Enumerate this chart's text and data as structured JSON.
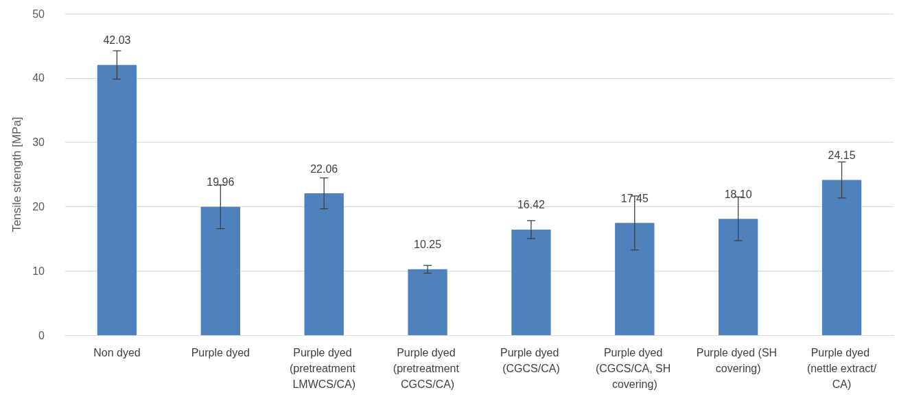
{
  "chart_data": {
    "type": "bar",
    "ylabel": "Tensile strength [MPa]",
    "categories": [
      "Non dyed",
      "Purple dyed",
      "Purple dyed (pretreatment LMWCS/CA)",
      "Purple dyed (pretreatment CGCS/CA)",
      "Purple dyed (CGCS/CA)",
      "Purple dyed (CGCS/CA, SH covering)",
      "Purple dyed (SH covering)",
      "Purple dyed (nettle extract/CA)"
    ],
    "values": [
      42.03,
      19.96,
      22.06,
      10.25,
      16.42,
      17.45,
      18.1,
      24.15
    ],
    "value_labels": [
      "42.03",
      "19.96",
      "22.06",
      "10.25",
      "16.42",
      "17.45",
      "18.10",
      "24.15"
    ],
    "errors": [
      2.2,
      3.4,
      2.4,
      0.6,
      1.4,
      4.2,
      3.4,
      2.8
    ],
    "color": "#4f81bd",
    "ylim": [
      0,
      50
    ],
    "yticks": [
      0,
      10,
      20,
      30,
      40,
      50
    ],
    "grid": "y"
  }
}
